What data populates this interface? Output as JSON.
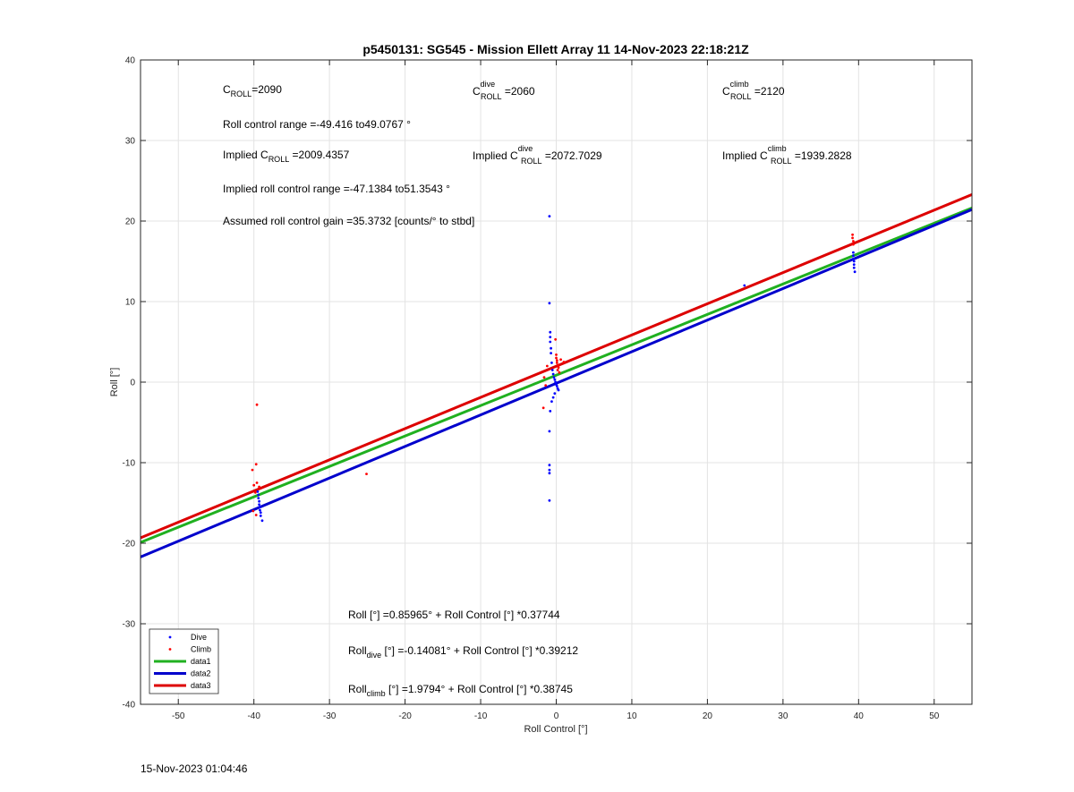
{
  "chart_data": {
    "type": "scatter",
    "title": "p5450131: SG545 - Mission Ellett Array 11 14-Nov-2023 22:18:21Z",
    "xlabel": "Roll Control [°]",
    "ylabel": "Roll [°]",
    "xlim": [
      -55,
      55
    ],
    "ylim": [
      -40,
      40
    ],
    "xticks": [
      -50,
      -40,
      -30,
      -20,
      -10,
      0,
      10,
      20,
      30,
      40,
      50
    ],
    "yticks": [
      -40,
      -30,
      -20,
      -10,
      0,
      10,
      20,
      30,
      40
    ],
    "grid": true,
    "legend_position": "bottom-left",
    "series": [
      {
        "name": "Dive",
        "kind": "points",
        "color": "#0000ff",
        "points": [
          [
            -39.5,
            -13.6
          ],
          [
            -39.4,
            -14.0
          ],
          [
            -39.4,
            -14.4
          ],
          [
            -39.3,
            -14.8
          ],
          [
            -39.3,
            -15.2
          ],
          [
            -39.2,
            -15.5
          ],
          [
            -39.2,
            -15.9
          ],
          [
            -39.1,
            -16.2
          ],
          [
            -39.1,
            -16.6
          ],
          [
            -38.9,
            -17.2
          ],
          [
            -0.9,
            20.6
          ],
          [
            -0.9,
            9.8
          ],
          [
            -0.8,
            6.2
          ],
          [
            -0.8,
            5.6
          ],
          [
            -0.8,
            5.0
          ],
          [
            -0.7,
            4.2
          ],
          [
            -0.7,
            3.6
          ],
          [
            -0.6,
            2.4
          ],
          [
            -0.5,
            1.5
          ],
          [
            -0.4,
            1.0
          ],
          [
            -0.3,
            0.6
          ],
          [
            -0.2,
            0.3
          ],
          [
            -0.1,
            0.0
          ],
          [
            0.0,
            -0.3
          ],
          [
            0.1,
            -0.5
          ],
          [
            0.2,
            -0.8
          ],
          [
            0.3,
            -1.0
          ],
          [
            -0.2,
            -1.4
          ],
          [
            -0.4,
            -1.9
          ],
          [
            -0.6,
            -2.4
          ],
          [
            -0.8,
            -3.6
          ],
          [
            -0.9,
            -6.1
          ],
          [
            -0.9,
            -10.3
          ],
          [
            -0.9,
            -10.9
          ],
          [
            -0.9,
            -11.3
          ],
          [
            -0.9,
            -14.7
          ],
          [
            24.9,
            12.0
          ],
          [
            39.3,
            16.1
          ],
          [
            39.3,
            15.7
          ],
          [
            39.3,
            15.3
          ],
          [
            39.4,
            15.0
          ],
          [
            39.4,
            14.6
          ],
          [
            39.4,
            14.2
          ],
          [
            39.5,
            13.7
          ]
        ]
      },
      {
        "name": "Climb",
        "kind": "points",
        "color": "#ff0000",
        "points": [
          [
            -39.6,
            -2.8
          ],
          [
            -39.7,
            -10.2
          ],
          [
            -40.2,
            -10.9
          ],
          [
            -39.6,
            -12.5
          ],
          [
            -40.0,
            -12.8
          ],
          [
            -39.3,
            -13.0
          ],
          [
            -39.8,
            -13.7
          ],
          [
            -40.1,
            -16.0
          ],
          [
            -39.7,
            -16.5
          ],
          [
            -25.1,
            -11.4
          ],
          [
            -1.6,
            0.6
          ],
          [
            -1.4,
            -0.4
          ],
          [
            -1.7,
            -3.2
          ],
          [
            -1.2,
            2.0
          ],
          [
            -0.1,
            5.3
          ],
          [
            0.0,
            3.4
          ],
          [
            0.0,
            3.0
          ],
          [
            0.1,
            2.7
          ],
          [
            0.1,
            2.4
          ],
          [
            0.2,
            2.1
          ],
          [
            0.3,
            1.8
          ],
          [
            0.2,
            1.5
          ],
          [
            0.4,
            1.2
          ],
          [
            0.6,
            2.8
          ],
          [
            1.0,
            2.5
          ],
          [
            39.2,
            18.3
          ],
          [
            39.2,
            17.9
          ],
          [
            39.3,
            17.5
          ],
          [
            39.3,
            17.1
          ]
        ]
      },
      {
        "name": "data1",
        "kind": "line",
        "color": "#20b020",
        "intercept": 0.85965,
        "slope": 0.37744
      },
      {
        "name": "data2",
        "kind": "line",
        "color": "#0000cc",
        "intercept": -0.14081,
        "slope": 0.39212
      },
      {
        "name": "data3",
        "kind": "line",
        "color": "#dd0000",
        "intercept": 1.9794,
        "slope": 0.38745
      }
    ],
    "annotations": {
      "croll": {
        "main": "C",
        "sub": "ROLL",
        "rest": "=2090"
      },
      "croll_dive": {
        "main": "C",
        "sup": "dive",
        "sub": "ROLL",
        "rest": " =2060"
      },
      "croll_climb": {
        "main": "C",
        "sup": "climb",
        "sub": "ROLL",
        "rest": " =2120"
      },
      "roll_range": "Roll control range =-49.416 to49.0767 °",
      "implied_croll": {
        "pre": "Implied C",
        "sub": "ROLL",
        "rest": " =2009.4357"
      },
      "implied_croll_dive": {
        "pre": "Implied C",
        "sup": "dive",
        "sub": "ROLL",
        "rest": " =2072.7029"
      },
      "implied_croll_climb": {
        "pre": "Implied C",
        "sup": "climb",
        "sub": "ROLL",
        "rest": " =1939.2828"
      },
      "implied_range": "Implied roll control range =-47.1384 to51.3543 °",
      "gain": "Assumed roll control gain =35.3732 [counts/° to stbd]",
      "fit_all": "Roll [°] =0.85965° + Roll Control [°] *0.37744",
      "fit_dive": {
        "pre": "Roll",
        "sub": "dive",
        "rest": " [°] =-0.14081° + Roll Control [°] *0.39212"
      },
      "fit_climb": {
        "pre": "Roll",
        "sub": "climb",
        "rest": " [°] =1.9794° + Roll Control [°] *0.38745"
      }
    }
  },
  "timestamp": "15-Nov-2023 01:04:46"
}
